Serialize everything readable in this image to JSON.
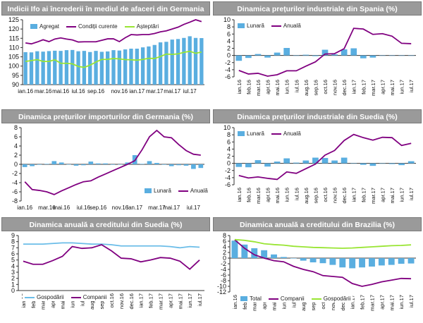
{
  "colors": {
    "bar": "#5aaee0",
    "purple": "#800080",
    "green": "#99e533",
    "lightblue": "#6bbde8",
    "axis": "#333333",
    "grid": "#dddddd"
  },
  "chart_data": [
    {
      "type": "bar-line",
      "title": "Indicii Ifo ai încrederii în mediul de afaceri din Germania",
      "y_ticks": [
        90,
        95,
        100,
        105,
        110,
        115,
        120,
        125
      ],
      "ylim": [
        90,
        125
      ],
      "x_ticks": [
        "ian.16",
        "mar.16",
        "mai.16",
        "iul.16",
        "sep.16",
        "nov.16",
        "ian.17",
        "mar.17",
        "mai.17",
        "iul.17"
      ],
      "series": [
        {
          "name": "Agregat",
          "kind": "bar",
          "color": "#5aaee0",
          "values": [
            107.5,
            107.4,
            108,
            107.8,
            108.1,
            108.3,
            108.2,
            108.6,
            108.7,
            108,
            108.2,
            107.6,
            108.2,
            107.7,
            107.9,
            108.6,
            108.4,
            109,
            109.4,
            109.4,
            110.1,
            110.6,
            111.4,
            112.8,
            113.1,
            114.3,
            114.6,
            115.2,
            116.1,
            115.2,
            115.1
          ]
        },
        {
          "name": "Condiții curente",
          "kind": "line",
          "color": "#800080",
          "values": [
            112.5,
            112,
            113,
            114.2,
            113.2,
            114.6,
            115.2,
            114.6,
            114.1,
            113,
            113.1,
            113.1,
            113.1,
            113.9,
            114.7,
            114.7,
            113.2,
            115.3,
            117,
            116.8,
            117,
            117,
            117.6,
            118.5,
            119,
            120,
            121,
            122.5,
            123.7,
            125,
            124
          ]
        },
        {
          "name": "Așteptări",
          "kind": "line",
          "color": "#99e533",
          "values": [
            102.5,
            103,
            103.5,
            102.5,
            102.5,
            103.4,
            101.5,
            101.5,
            101.2,
            99.8,
            99.3,
            100.5,
            102.2,
            103.6,
            103.6,
            104.1,
            103.9,
            103.5,
            103.4,
            103.2,
            103.6,
            104.2,
            104.1,
            105.2,
            106.5,
            106.3,
            106.6,
            107.4,
            108,
            106.9,
            107.6
          ]
        }
      ]
    },
    {
      "type": "bar-line",
      "title": "Dinamica prețurilor industriale din Spania (%)",
      "y_ticks": [
        -6,
        -4,
        -2,
        0,
        2,
        4,
        6,
        8,
        10
      ],
      "ylim": [
        -6,
        10
      ],
      "x_ticks": [
        "ian.16",
        "feb.16",
        "mar.16",
        "apr.16",
        "mai.16",
        "iun.16",
        "iul.16",
        "aug.16",
        "sep.16",
        "oct.16",
        "nov.16",
        "dec.16",
        "ian.17",
        "feb.17",
        "mar.17",
        "apr.17",
        "mai.17",
        "iun.17",
        "iul.17"
      ],
      "series": [
        {
          "name": "Lunară",
          "kind": "bar",
          "color": "#5aaee0",
          "values": [
            -1.5,
            -0.7,
            0.4,
            -0.6,
            0.8,
            2.1,
            0,
            0.2,
            -0.2,
            1.6,
            0.3,
            1.7,
            2,
            -0.8,
            -0.6,
            -0.1,
            -0.1,
            -0.1,
            0
          ]
        },
        {
          "name": "Anuală",
          "kind": "line",
          "color": "#800080",
          "values": [
            -4.2,
            -5.2,
            -5,
            -5.8,
            -5.4,
            -4.3,
            -4.3,
            -3,
            -1.8,
            0.4,
            0.5,
            1.9,
            7.6,
            7.4,
            5.9,
            6.1,
            5.4,
            3.4,
            3.3
          ]
        }
      ]
    },
    {
      "type": "bar-line",
      "title": "Dinamica prețurilor importurilor din Germania (%)",
      "y_ticks": [
        -8,
        -6,
        -4,
        -2,
        0,
        2,
        4,
        6,
        8
      ],
      "ylim": [
        -8,
        8
      ],
      "x_ticks": [
        "ian.16",
        "mar.16",
        "mai.16",
        "iul.16",
        "sep.16",
        "nov.16",
        "ian.17",
        "mar.17",
        "mai.17",
        "iul.17"
      ],
      "series": [
        {
          "name": "Lunară",
          "kind": "bar",
          "color": "#5aaee0",
          "values": [
            -0.6,
            -0.4,
            -0.1,
            0.1,
            0.7,
            0.4,
            0,
            -0.3,
            -0.2,
            0.6,
            0.2,
            0.2,
            -0.1,
            0,
            0.4,
            2,
            0.1,
            0.7,
            0.3,
            -0.1,
            -0.4,
            -0.2,
            -0.3,
            -1,
            -0.8
          ]
        },
        {
          "name": "Anuală",
          "kind": "line",
          "color": "#800080",
          "values": [
            -3.8,
            -5.5,
            -5.7,
            -6,
            -6.6,
            -5.8,
            -5.1,
            -4.4,
            -3.8,
            -3.6,
            -2.8,
            -2.1,
            -1.4,
            -0.7,
            0,
            0.8,
            3.2,
            6,
            7.4,
            6,
            5.8,
            4.3,
            3,
            2.2,
            2
          ]
        }
      ]
    },
    {
      "type": "bar-line",
      "title": "Dinamica prețurilor industriale din Suedia (%)",
      "y_ticks": [
        -6,
        -4,
        -2,
        0,
        2,
        4,
        6,
        8,
        10
      ],
      "ylim": [
        -6,
        10
      ],
      "x_ticks": [
        "ian.16",
        "feb.16",
        "mar.16",
        "apr.16",
        "mai.16",
        "iun.16",
        "iul.16",
        "aug.16",
        "sep.16",
        "oct.16",
        "nov.16",
        "dec.16",
        "ian.17",
        "feb.17",
        "mar.17",
        "apr.17",
        "mai.17",
        "iun.17",
        "iul.17"
      ],
      "series": [
        {
          "name": "Lunară",
          "kind": "bar",
          "color": "#5aaee0",
          "values": [
            -1,
            -1.1,
            0.9,
            -0.9,
            0.5,
            1.4,
            0.2,
            0.8,
            1.6,
            1.5,
            0.8,
            1.6,
            0.1,
            -0.4,
            -0.7,
            0,
            -0.2,
            -0.5,
            0.6
          ]
        },
        {
          "name": "Anuală",
          "kind": "line",
          "color": "#800080",
          "values": [
            -3.4,
            -4.1,
            -3.8,
            -4.2,
            -4.5,
            -2.4,
            -2.8,
            -1.5,
            -0.2,
            2.3,
            3.6,
            6.4,
            8.1,
            7.2,
            6.5,
            7.3,
            7.2,
            5,
            5.6
          ]
        }
      ]
    },
    {
      "type": "line",
      "title": "Dinamica anuală a creditului din Suedia (%)",
      "y_ticks": [
        0,
        1,
        2,
        3,
        4,
        5,
        6,
        7,
        8,
        9
      ],
      "ylim": [
        0,
        9
      ],
      "x_ticks": [
        "ian.16",
        "feb.16",
        "mar.16",
        "apr.16",
        "mai.16",
        "iun.16",
        "iul.16",
        "aug.16",
        "sep.16",
        "oct.16",
        "nov.16",
        "dec.16",
        "ian.17",
        "feb.17",
        "mar.17",
        "apr.17",
        "mai.17",
        "iun.17",
        "iul.17"
      ],
      "series": [
        {
          "name": "Gospodării",
          "kind": "line",
          "color": "#6bbde8",
          "values": [
            7.6,
            7.6,
            7.6,
            7.7,
            7.8,
            7.8,
            7.7,
            7.6,
            7.6,
            7.5,
            7.3,
            7.3,
            7.3,
            7.3,
            7.3,
            7.2,
            7.0,
            7.2,
            7.1
          ]
        },
        {
          "name": "Companii",
          "kind": "line",
          "color": "#800080",
          "values": [
            4.8,
            4.3,
            4.3,
            4.9,
            5.6,
            7.2,
            6.9,
            7.0,
            7.5,
            6.5,
            5.3,
            5.2,
            4.7,
            5.0,
            5.4,
            5.3,
            4.8,
            3.5,
            5.0
          ]
        }
      ]
    },
    {
      "type": "bar-line",
      "title": "Dinamica anuală a creditului din Brazilia (%)",
      "y_ticks": [
        -12,
        -10,
        -8,
        -6,
        -4,
        -2,
        0,
        2,
        4,
        6,
        8
      ],
      "ylim": [
        -12,
        8
      ],
      "x_ticks": [
        "ian.16",
        "feb.16",
        "mar.16",
        "apr.16",
        "mai.16",
        "iun.16",
        "iul.16",
        "aug.16",
        "sep.16",
        "oct.16",
        "nov.16",
        "dec.16",
        "ian.17",
        "feb.17",
        "mar.17",
        "apr.17",
        "mai.17",
        "iun.17",
        "iul.17"
      ],
      "series": [
        {
          "name": "Total",
          "kind": "bar",
          "color": "#5aaee0",
          "values": [
            6.2,
            4.8,
            3.5,
            2.8,
            1.3,
            0.4,
            -0.1,
            -0.9,
            -1.5,
            -1.8,
            -2.4,
            -3.3,
            -3.6,
            -3.3,
            -3.0,
            -2.6,
            -2.4,
            -2.0,
            -1.9
          ]
        },
        {
          "name": "Companii",
          "kind": "line",
          "color": "#800080",
          "values": [
            6.5,
            3.5,
            1.2,
            0,
            -0.9,
            -1.3,
            -2.9,
            -4,
            -4.8,
            -6.2,
            -6.5,
            -6.8,
            -9,
            -10,
            -9.3,
            -8.4,
            -7.8,
            -7.2,
            -7.3
          ]
        },
        {
          "name": "Gospodării",
          "kind": "line",
          "color": "#99e533",
          "values": [
            6.6,
            6.3,
            5.8,
            5.1,
            4.8,
            4.6,
            4.2,
            4,
            3.8,
            3.7,
            3.6,
            3.5,
            3.6,
            3.8,
            4,
            4.2,
            4.4,
            4.5,
            4.7
          ]
        }
      ]
    }
  ]
}
